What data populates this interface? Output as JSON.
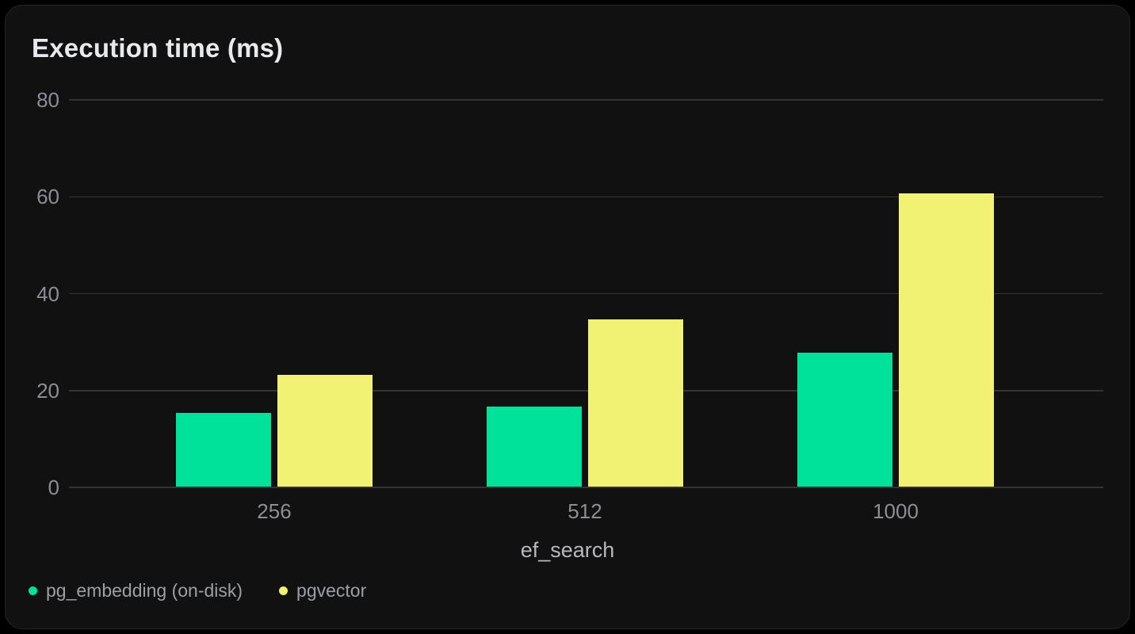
{
  "page": {
    "background": "#000000",
    "card_background": "#101110",
    "card_border": "#242524",
    "gridline_color": "#333433",
    "title_color": "#e8e9ec",
    "tick_color": "#8d8d95",
    "axis_label_color": "#b7b8bd",
    "legend_text_color": "#9ca0a6"
  },
  "chart_data": {
    "type": "bar",
    "title": "Execution time (ms)",
    "xlabel": "ef_search",
    "ylabel": "",
    "categories": [
      "256",
      "512",
      "1000"
    ],
    "series": [
      {
        "name": "pg_embedding (on-disk)",
        "color": "#00e29a",
        "values": [
          15.3,
          16.5,
          27.7
        ]
      },
      {
        "name": "pgvector",
        "color": "#f1f173",
        "values": [
          23.1,
          34.6,
          60.5
        ]
      }
    ],
    "ylim": [
      0,
      80
    ],
    "yticks": [
      0,
      20,
      40,
      60,
      80
    ],
    "grid": true,
    "legend_position": "bottom-left"
  }
}
